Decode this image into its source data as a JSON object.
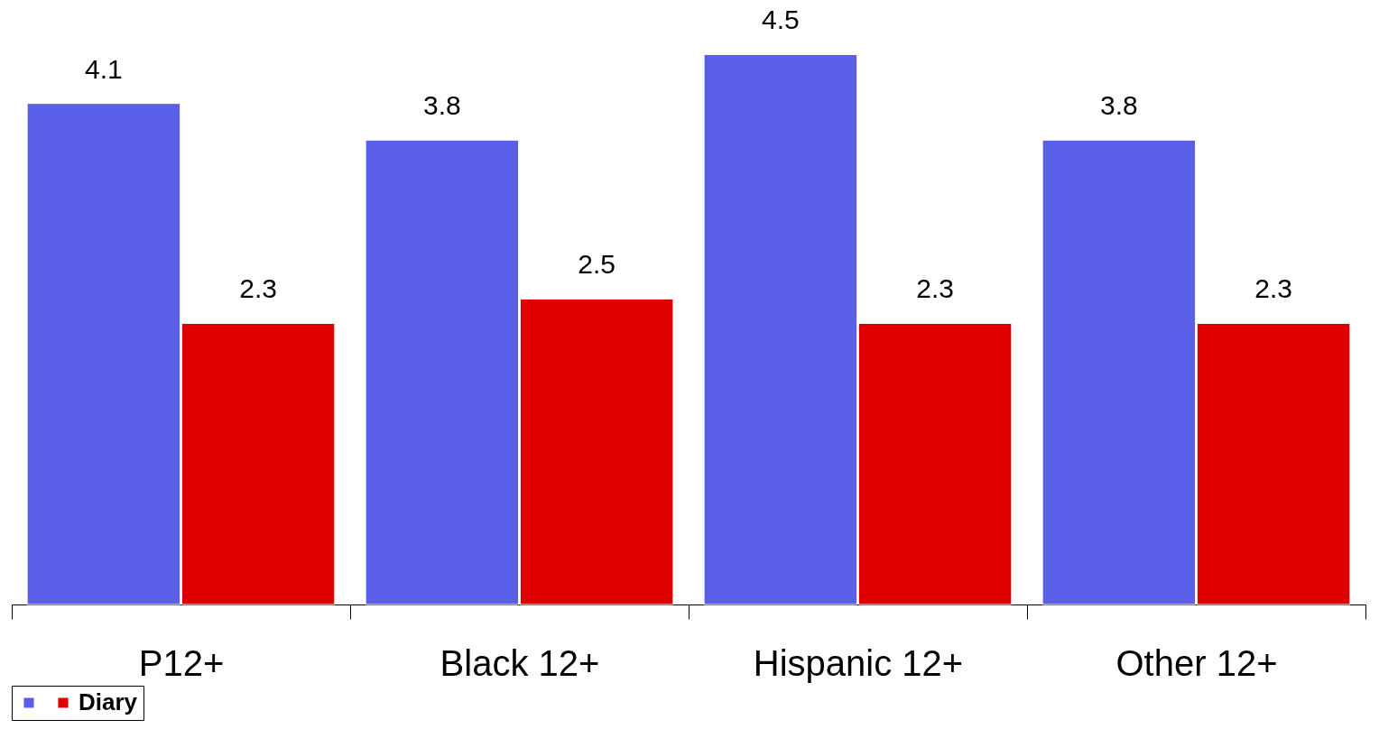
{
  "chart_data": {
    "type": "bar",
    "categories": [
      "P12+",
      "Black 12+",
      "Hispanic 12+",
      "Other 12+"
    ],
    "series": [
      {
        "color": "#5a5fe8",
        "values": [
          4.1,
          3.8,
          4.5,
          3.8
        ]
      },
      {
        "name": "Diary",
        "color": "#e00000",
        "values": [
          2.3,
          2.5,
          2.3,
          2.3
        ]
      }
    ],
    "data_labels": true,
    "legend": "bottom",
    "grid": false,
    "tick_labels": "x"
  }
}
